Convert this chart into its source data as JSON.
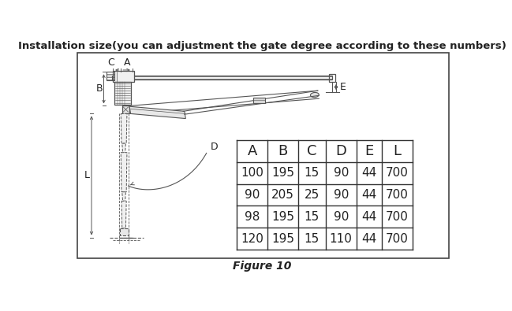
{
  "title": "Installation size(you can adjustment the gate degree according to these numbers)",
  "figure_label": "Figure 10",
  "table_headers": [
    "A",
    "B",
    "C",
    "D",
    "E",
    "L"
  ],
  "table_data": [
    [
      100,
      195,
      15,
      90,
      44,
      700
    ],
    [
      90,
      205,
      25,
      90,
      44,
      700
    ],
    [
      98,
      195,
      15,
      90,
      44,
      700
    ],
    [
      120,
      195,
      15,
      110,
      44,
      700
    ]
  ],
  "bg_color": "#ffffff",
  "border_color": "#444444",
  "text_color": "#222222",
  "diagram_color": "#555555",
  "title_fontsize": 9.5,
  "table_header_fontsize": 13,
  "table_data_fontsize": 11,
  "fig_label_fontsize": 10,
  "label_fontsize": 9
}
